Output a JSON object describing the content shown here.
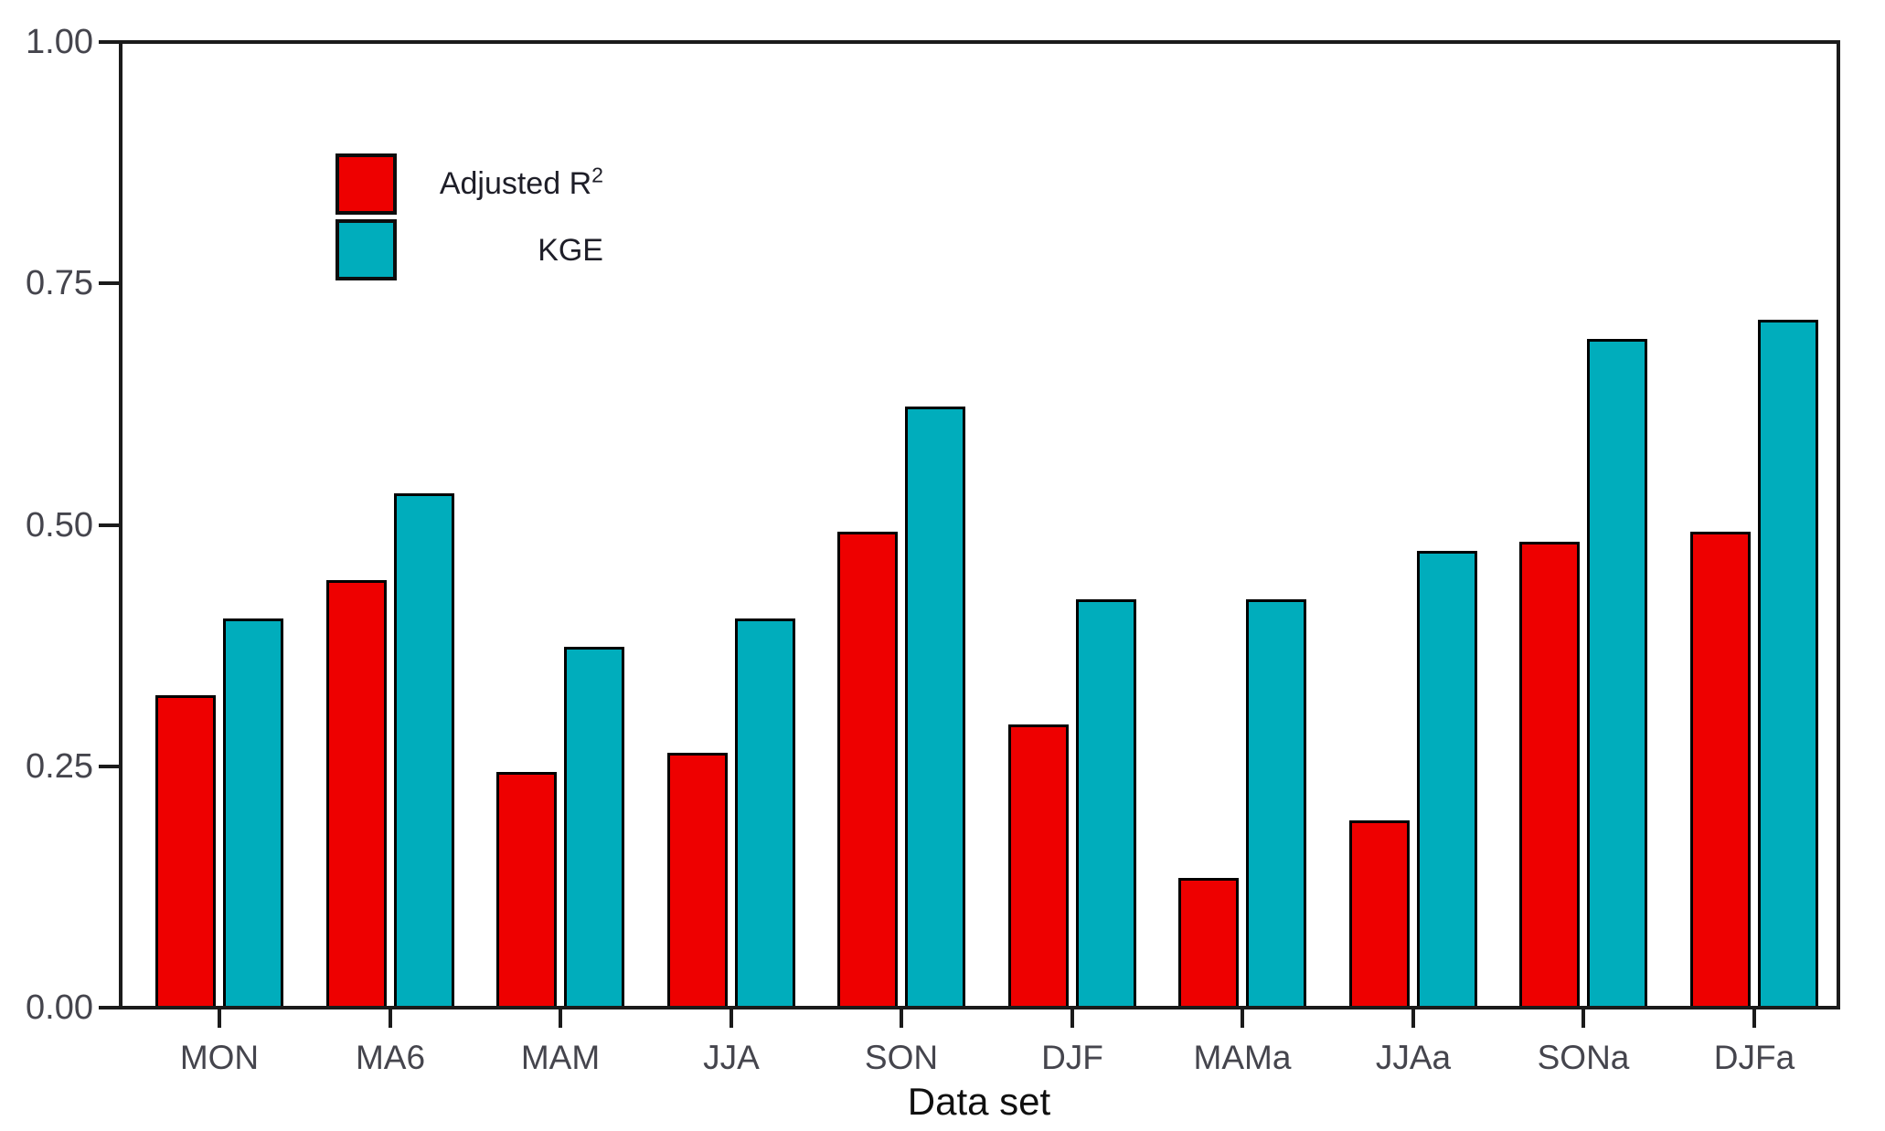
{
  "chart_data": {
    "type": "bar",
    "title": "",
    "xlabel": "Data set",
    "ylabel": "",
    "categories": [
      "MON",
      "MA6",
      "MAM",
      "JJA",
      "SON",
      "DJF",
      "MAMa",
      "JJAa",
      "SONa",
      "DJFa"
    ],
    "series": [
      {
        "name": "Adjusted R²",
        "color": "#ee0000",
        "values": [
          0.32,
          0.44,
          0.24,
          0.26,
          0.49,
          0.29,
          0.13,
          0.19,
          0.48,
          0.49
        ]
      },
      {
        "name": "KGE",
        "color": "#00adbc",
        "values": [
          0.4,
          0.53,
          0.37,
          0.4,
          0.62,
          0.42,
          0.42,
          0.47,
          0.69,
          0.71
        ]
      }
    ],
    "ylim": [
      0,
      1
    ],
    "ytick_labels": [
      "0.00",
      "0.25",
      "0.50",
      "0.75",
      "1.00"
    ],
    "grid": false,
    "legend_position": "inside-top-left",
    "bar_border_color": "#000000",
    "axis_color": "#1b1b1b",
    "tick_label_color": "#45454d"
  },
  "legend": {
    "items": [
      {
        "base": "Adjusted R",
        "sup": "2",
        "color": "#ee0000"
      },
      {
        "base": "KGE",
        "sup": "",
        "color": "#00adbc"
      }
    ]
  }
}
